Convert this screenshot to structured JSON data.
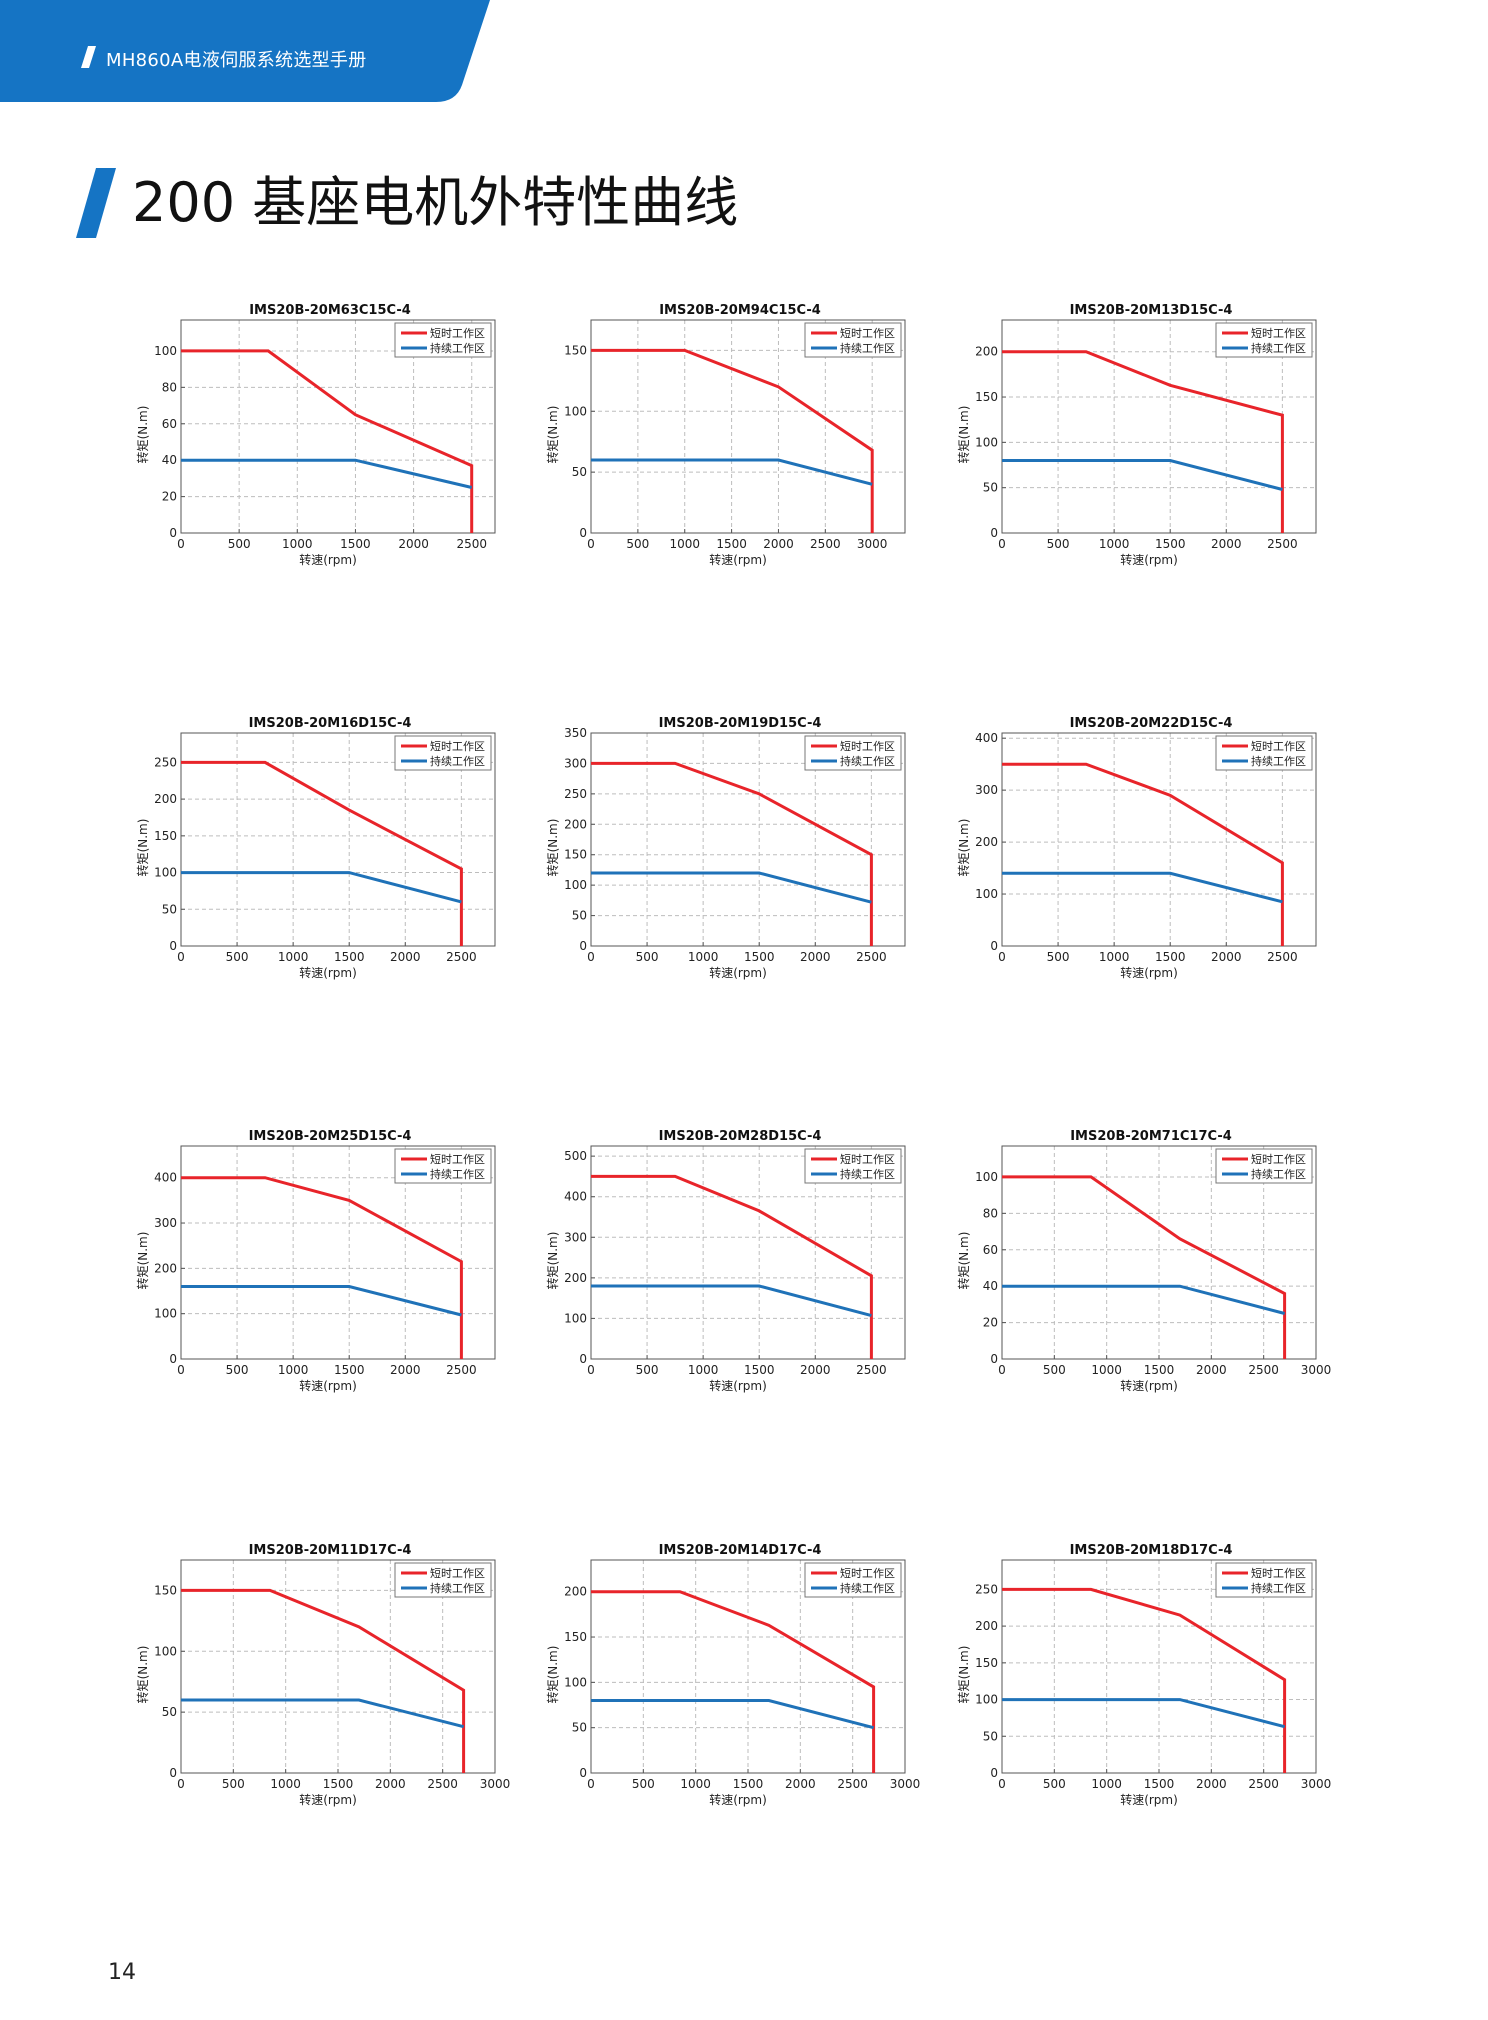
{
  "header": {
    "title": "MH860A电液伺服系统选型手册"
  },
  "page_title": "200 基座电机外特性曲线",
  "page_number": "14",
  "colors": {
    "brand_blue": "#1574c4",
    "short_term": "#e8242a",
    "continuous": "#1f72b8"
  },
  "legend": {
    "short_term": "短时工作区",
    "continuous": "持续工作区"
  },
  "chart_data": [
    {
      "type": "line",
      "title": "IMS20B-20M63C15C-4",
      "xlabel": "转速(rpm)",
      "ylabel": "转矩(N.m)",
      "xlim": [
        0,
        2700
      ],
      "ylim": [
        0,
        117
      ],
      "xticks": [
        "0",
        "500",
        "1000",
        "1500",
        "2000",
        "2500"
      ],
      "yticks": [
        "0",
        "20",
        "40",
        "60",
        "80",
        "100"
      ],
      "series": [
        {
          "name": "短时工作区",
          "x": [
            0,
            750,
            1500,
            2500,
            2500
          ],
          "y": [
            100,
            100,
            65,
            37,
            0
          ]
        },
        {
          "name": "持续工作区",
          "x": [
            0,
            1500,
            2500
          ],
          "y": [
            40,
            40,
            25
          ]
        }
      ]
    },
    {
      "type": "line",
      "title": "IMS20B-20M94C15C-4",
      "xlabel": "转速(rpm)",
      "ylabel": "转矩(N.m)",
      "xlim": [
        0,
        3350
      ],
      "ylim": [
        0,
        175
      ],
      "xticks": [
        "0",
        "500",
        "1000",
        "1500",
        "2000",
        "2500",
        "3000"
      ],
      "yticks": [
        "0",
        "50",
        "100",
        "150"
      ],
      "series": [
        {
          "name": "短时工作区",
          "x": [
            0,
            1000,
            2000,
            3000,
            3000
          ],
          "y": [
            150,
            150,
            120,
            68,
            0
          ]
        },
        {
          "name": "持续工作区",
          "x": [
            0,
            2000,
            3000
          ],
          "y": [
            60,
            60,
            40
          ]
        }
      ]
    },
    {
      "type": "line",
      "title": "IMS20B-20M13D15C-4",
      "xlabel": "转速(rpm)",
      "ylabel": "转矩(N.m)",
      "xlim": [
        0,
        2800
      ],
      "ylim": [
        0,
        235
      ],
      "xticks": [
        "0",
        "500",
        "1000",
        "1500",
        "2000",
        "2500"
      ],
      "yticks": [
        "0",
        "50",
        "100",
        "150",
        "200"
      ],
      "series": [
        {
          "name": "短时工作区",
          "x": [
            0,
            750,
            1500,
            2500,
            2500
          ],
          "y": [
            200,
            200,
            163,
            130,
            0
          ]
        },
        {
          "name": "持续工作区",
          "x": [
            0,
            1500,
            2500
          ],
          "y": [
            80,
            80,
            48
          ]
        }
      ]
    },
    {
      "type": "line",
      "title": "IMS20B-20M16D15C-4",
      "xlabel": "转速(rpm)",
      "ylabel": "转矩(N.m)",
      "xlim": [
        0,
        2800
      ],
      "ylim": [
        0,
        290
      ],
      "xticks": [
        "0",
        "500",
        "1000",
        "1500",
        "2000",
        "2500"
      ],
      "yticks": [
        "0",
        "50",
        "100",
        "150",
        "200",
        "250"
      ],
      "series": [
        {
          "name": "短时工作区",
          "x": [
            0,
            750,
            1500,
            2500,
            2500
          ],
          "y": [
            250,
            250,
            185,
            105,
            0
          ]
        },
        {
          "name": "持续工作区",
          "x": [
            0,
            1500,
            2500
          ],
          "y": [
            100,
            100,
            60
          ]
        }
      ]
    },
    {
      "type": "line",
      "title": "IMS20B-20M19D15C-4",
      "xlabel": "转速(rpm)",
      "ylabel": "转矩(N.m)",
      "xlim": [
        0,
        2800
      ],
      "ylim": [
        0,
        350
      ],
      "xticks": [
        "0",
        "500",
        "1000",
        "1500",
        "2000",
        "2500"
      ],
      "yticks": [
        "0",
        "50",
        "100",
        "150",
        "200",
        "250",
        "300",
        "350"
      ],
      "series": [
        {
          "name": "短时工作区",
          "x": [
            0,
            750,
            1500,
            2500,
            2500
          ],
          "y": [
            300,
            300,
            250,
            150,
            0
          ]
        },
        {
          "name": "持续工作区",
          "x": [
            0,
            1500,
            2500
          ],
          "y": [
            120,
            120,
            72
          ]
        }
      ]
    },
    {
      "type": "line",
      "title": "IMS20B-20M22D15C-4",
      "xlabel": "转速(rpm)",
      "ylabel": "转矩(N.m)",
      "xlim": [
        0,
        2800
      ],
      "ylim": [
        0,
        410
      ],
      "xticks": [
        "0",
        "500",
        "1000",
        "1500",
        "2000",
        "2500"
      ],
      "yticks": [
        "0",
        "100",
        "200",
        "300",
        "400"
      ],
      "series": [
        {
          "name": "短时工作区",
          "x": [
            0,
            750,
            1500,
            2500,
            2500
          ],
          "y": [
            350,
            350,
            290,
            160,
            0
          ]
        },
        {
          "name": "持续工作区",
          "x": [
            0,
            1500,
            2500
          ],
          "y": [
            140,
            140,
            85
          ]
        }
      ]
    },
    {
      "type": "line",
      "title": "IMS20B-20M25D15C-4",
      "xlabel": "转速(rpm)",
      "ylabel": "转矩(N.m)",
      "xlim": [
        0,
        2800
      ],
      "ylim": [
        0,
        470
      ],
      "xticks": [
        "0",
        "500",
        "1000",
        "1500",
        "2000",
        "2500"
      ],
      "yticks": [
        "0",
        "100",
        "200",
        "300",
        "400"
      ],
      "series": [
        {
          "name": "短时工作区",
          "x": [
            0,
            750,
            1500,
            2500,
            2500
          ],
          "y": [
            400,
            400,
            350,
            215,
            0
          ]
        },
        {
          "name": "持续工作区",
          "x": [
            0,
            1500,
            2500
          ],
          "y": [
            160,
            160,
            97
          ]
        }
      ]
    },
    {
      "type": "line",
      "title": "IMS20B-20M28D15C-4",
      "xlabel": "转速(rpm)",
      "ylabel": "转矩(N.m)",
      "xlim": [
        0,
        2800
      ],
      "ylim": [
        0,
        525
      ],
      "xticks": [
        "0",
        "500",
        "1000",
        "1500",
        "2000",
        "2500"
      ],
      "yticks": [
        "0",
        "100",
        "200",
        "300",
        "400",
        "500"
      ],
      "series": [
        {
          "name": "短时工作区",
          "x": [
            0,
            750,
            1500,
            2500,
            2500
          ],
          "y": [
            450,
            450,
            365,
            205,
            0
          ]
        },
        {
          "name": "持续工作区",
          "x": [
            0,
            1500,
            2500
          ],
          "y": [
            180,
            180,
            107
          ]
        }
      ]
    },
    {
      "type": "line",
      "title": "IMS20B-20M71C17C-4",
      "xlabel": "转速(rpm)",
      "ylabel": "转矩(N.m)",
      "xlim": [
        0,
        3000
      ],
      "ylim": [
        0,
        117
      ],
      "xticks": [
        "0",
        "500",
        "1000",
        "1500",
        "2000",
        "2500",
        "3000"
      ],
      "yticks": [
        "0",
        "20",
        "40",
        "60",
        "80",
        "100"
      ],
      "series": [
        {
          "name": "短时工作区",
          "x": [
            0,
            850,
            1700,
            2700,
            2700
          ],
          "y": [
            100,
            100,
            66,
            36,
            0
          ]
        },
        {
          "name": "持续工作区",
          "x": [
            0,
            1700,
            2700
          ],
          "y": [
            40,
            40,
            25
          ]
        }
      ]
    },
    {
      "type": "line",
      "title": "IMS20B-20M11D17C-4",
      "xlabel": "转速(rpm)",
      "ylabel": "转矩(N.m)",
      "xlim": [
        0,
        3000
      ],
      "ylim": [
        0,
        175
      ],
      "xticks": [
        "0",
        "500",
        "1000",
        "1500",
        "2000",
        "2500",
        "3000"
      ],
      "yticks": [
        "0",
        "50",
        "100",
        "150"
      ],
      "series": [
        {
          "name": "短时工作区",
          "x": [
            0,
            850,
            1700,
            2700,
            2700
          ],
          "y": [
            150,
            150,
            120,
            68,
            0
          ]
        },
        {
          "name": "持续工作区",
          "x": [
            0,
            1700,
            2700
          ],
          "y": [
            60,
            60,
            38
          ]
        }
      ]
    },
    {
      "type": "line",
      "title": "IMS20B-20M14D17C-4",
      "xlabel": "转速(rpm)",
      "ylabel": "转矩(N.m)",
      "xlim": [
        0,
        3000
      ],
      "ylim": [
        0,
        235
      ],
      "xticks": [
        "0",
        "500",
        "1000",
        "1500",
        "2000",
        "2500",
        "3000"
      ],
      "yticks": [
        "0",
        "50",
        "100",
        "150",
        "200"
      ],
      "series": [
        {
          "name": "短时工作区",
          "x": [
            0,
            850,
            1700,
            2700,
            2700
          ],
          "y": [
            200,
            200,
            163,
            95,
            0
          ]
        },
        {
          "name": "持续工作区",
          "x": [
            0,
            1700,
            2700
          ],
          "y": [
            80,
            80,
            50
          ]
        }
      ]
    },
    {
      "type": "line",
      "title": "IMS20B-20M18D17C-4",
      "xlabel": "转速(rpm)",
      "ylabel": "转矩(N.m)",
      "xlim": [
        0,
        3000
      ],
      "ylim": [
        0,
        290
      ],
      "xticks": [
        "0",
        "500",
        "1000",
        "1500",
        "2000",
        "2500",
        "3000"
      ],
      "yticks": [
        "0",
        "50",
        "100",
        "150",
        "200",
        "250"
      ],
      "series": [
        {
          "name": "短时工作区",
          "x": [
            0,
            850,
            1700,
            2700,
            2700
          ],
          "y": [
            250,
            250,
            215,
            127,
            0
          ]
        },
        {
          "name": "持续工作区",
          "x": [
            0,
            1700,
            2700
          ],
          "y": [
            100,
            100,
            63
          ]
        }
      ]
    }
  ]
}
